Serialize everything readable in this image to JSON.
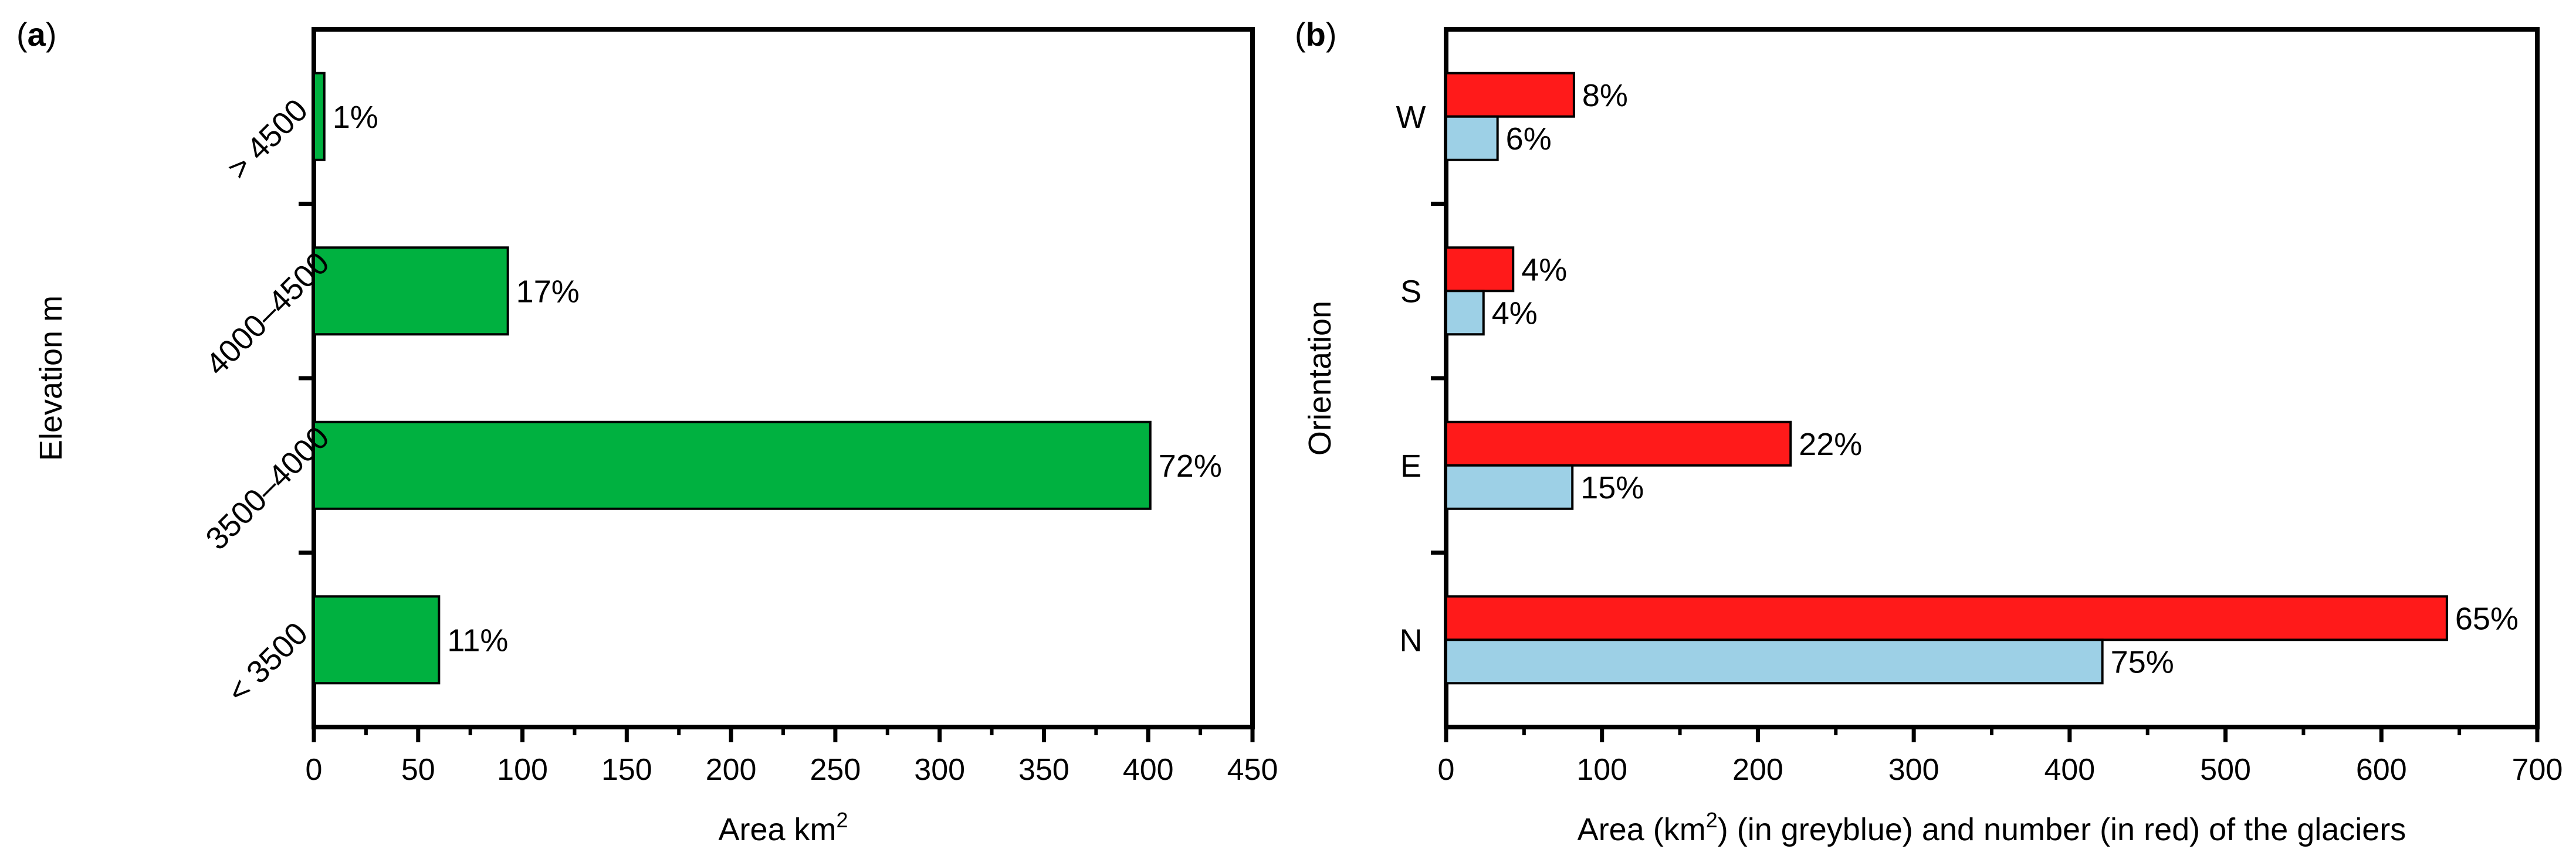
{
  "colors": {
    "elevation_bar": "#00b140",
    "glacier_area": "#9dd0e6",
    "glacier_number": "#ff1a1a",
    "axis": "#000000"
  },
  "chart_data": [
    {
      "panel_label": "a",
      "type": "bar",
      "orientation": "horizontal",
      "categories": [
        "< 3500",
        "3500–4000",
        "4000–4500",
        "> 4500"
      ],
      "series": [
        {
          "name": "Area km2",
          "values": [
            60,
            401,
            93,
            5
          ],
          "labels": [
            "11%",
            "72%",
            "17%",
            "1%"
          ]
        }
      ],
      "xlabel": "Area km",
      "xlabel_sup": "2",
      "ylabel": "Elevation m",
      "xlim": [
        0,
        450
      ],
      "xticks": [
        "0",
        "50",
        "100",
        "150",
        "200",
        "250",
        "300",
        "350",
        "400",
        "450"
      ],
      "grid": false,
      "legend": "none"
    },
    {
      "panel_label": "b",
      "type": "bar",
      "orientation": "horizontal",
      "categories": [
        "N",
        "E",
        "S",
        "W"
      ],
      "series": [
        {
          "name": "Area (in greyblue)",
          "values": [
            421,
            81,
            24,
            33
          ],
          "labels": [
            "75%",
            "15%",
            "4%",
            "6%"
          ]
        },
        {
          "name": "Number (in red)",
          "values": [
            642,
            221,
            43,
            82
          ],
          "labels": [
            "65%",
            "22%",
            "4%",
            "8%"
          ]
        }
      ],
      "xlabel_pre": "Area (km",
      "xlabel_sup": "2",
      "xlabel_post": ") (in greyblue) and number (in red) of the glaciers",
      "ylabel": "Orientation",
      "xlim": [
        0,
        700
      ],
      "xticks": [
        "0",
        "100",
        "200",
        "300",
        "400",
        "500",
        "600",
        "700"
      ],
      "grid": false,
      "legend": "none"
    }
  ]
}
